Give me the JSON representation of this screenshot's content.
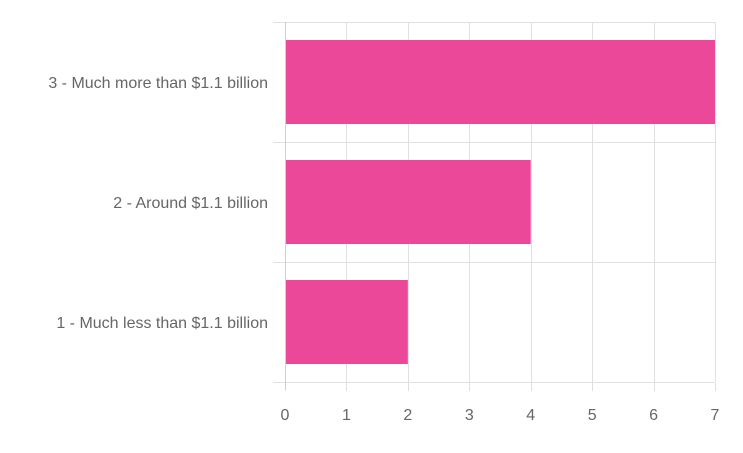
{
  "chart_data": {
    "type": "bar",
    "orientation": "horizontal",
    "categories": [
      "3 - Much more than $1.1 billion",
      "2 - Around $1.1 billion",
      "1 - Much less than $1.1 billion"
    ],
    "values": [
      7,
      4,
      2
    ],
    "title": "",
    "xlabel": "",
    "ylabel": "",
    "xlim": [
      0,
      7
    ],
    "xticks": [
      "0",
      "1",
      "2",
      "3",
      "4",
      "5",
      "6",
      "7"
    ],
    "grid": true,
    "legend": "none",
    "bar_color": "#EC4899"
  }
}
